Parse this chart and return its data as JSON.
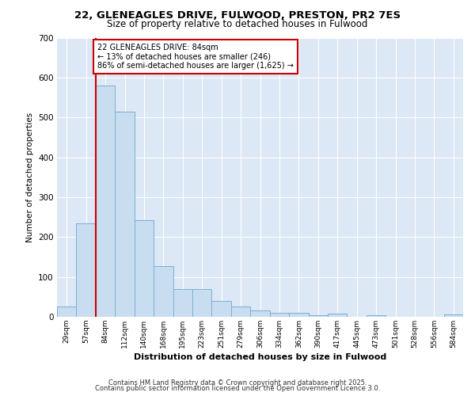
{
  "title1": "22, GLENEAGLES DRIVE, FULWOOD, PRESTON, PR2 7ES",
  "title2": "Size of property relative to detached houses in Fulwood",
  "xlabel": "Distribution of detached houses by size in Fulwood",
  "ylabel": "Number of detached properties",
  "categories": [
    "29sqm",
    "57sqm",
    "84sqm",
    "112sqm",
    "140sqm",
    "168sqm",
    "195sqm",
    "223sqm",
    "251sqm",
    "279sqm",
    "306sqm",
    "334sqm",
    "362sqm",
    "390sqm",
    "417sqm",
    "445sqm",
    "473sqm",
    "501sqm",
    "528sqm",
    "556sqm",
    "584sqm"
  ],
  "values": [
    25,
    235,
    580,
    515,
    242,
    128,
    70,
    70,
    40,
    25,
    15,
    10,
    10,
    4,
    7,
    0,
    4,
    0,
    0,
    0,
    5
  ],
  "bar_color": "#c9ddf0",
  "bar_edge_color": "#7bafd4",
  "highlight_index": 2,
  "highlight_line_color": "#cc0000",
  "annotation_line1": "22 GLENEAGLES DRIVE: 84sqm",
  "annotation_line2": "← 13% of detached houses are smaller (246)",
  "annotation_line3": "86% of semi-detached houses are larger (1,625) →",
  "annotation_box_color": "#ffffff",
  "annotation_box_edge": "#cc0000",
  "ylim": [
    0,
    700
  ],
  "yticks": [
    0,
    100,
    200,
    300,
    400,
    500,
    600,
    700
  ],
  "plot_bg_color": "#dce8f5",
  "grid_color": "#ffffff",
  "footer1": "Contains HM Land Registry data © Crown copyright and database right 2025.",
  "footer2": "Contains public sector information licensed under the Open Government Licence 3.0."
}
